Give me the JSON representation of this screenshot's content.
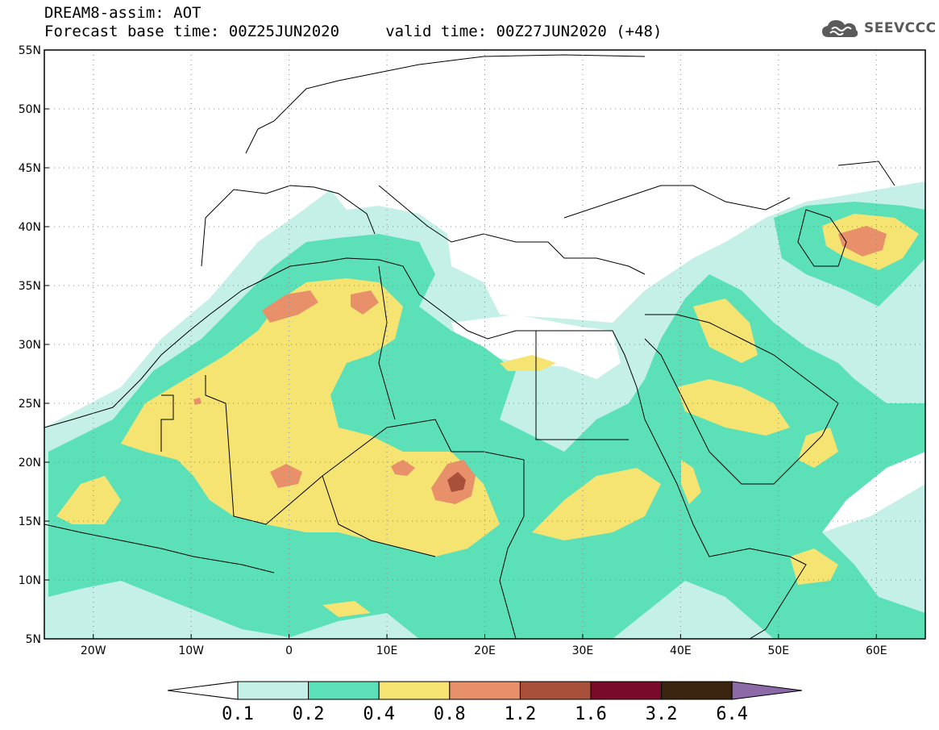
{
  "header": {
    "line1": "DREAM8-assim: AOT",
    "line2": "Forecast base time: 00Z25JUN2020     valid time: 00Z27JUN2020 (+48)"
  },
  "logo": {
    "text": "SEEVCCC",
    "icon": "cloud-icon",
    "color": "#5a5a5a"
  },
  "map": {
    "projection": "lat-lon",
    "lon_range": [
      -25,
      65
    ],
    "lat_range": [
      5,
      55
    ],
    "lat_ticks": [
      "5N",
      "10N",
      "15N",
      "20N",
      "25N",
      "30N",
      "35N",
      "40N",
      "45N",
      "50N",
      "55N"
    ],
    "lon_ticks": [
      "20W",
      "10W",
      "0",
      "10E",
      "20E",
      "30E",
      "40E",
      "50E",
      "60E"
    ],
    "grid": "dotted"
  },
  "colorbar": {
    "labels": [
      "0.1",
      "0.2",
      "0.4",
      "0.8",
      "1.2",
      "1.6",
      "3.2",
      "6.4"
    ],
    "colors": [
      "#ffffff",
      "#c4f0e8",
      "#5ce0b8",
      "#f5e472",
      "#e8906a",
      "#a8503a",
      "#7a0a2a",
      "#3a2410",
      "#8c6aa8"
    ],
    "extend": "both"
  }
}
